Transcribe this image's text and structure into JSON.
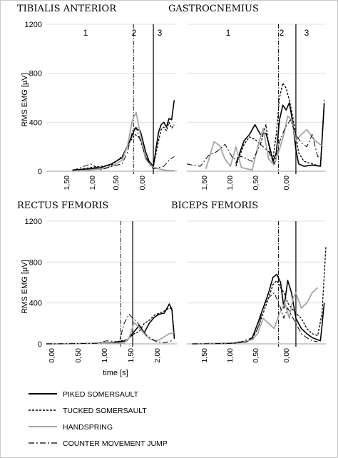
{
  "chart_data": [
    {
      "type": "line",
      "title": "TIBIALIS ANTERIOR",
      "ylabel": "RMS EMG [µV]",
      "xlabel": "",
      "ylim": [
        0,
        1200
      ],
      "yticks": [
        "0",
        "400",
        "800",
        "1200"
      ],
      "xlim": [
        2.05,
        -0.45
      ],
      "xticks": [
        "1,50",
        "1,00",
        "0,50",
        "0,00"
      ],
      "phase_labels": [
        "1",
        "2",
        "3"
      ],
      "phase_lines": [
        {
          "x": 0.38,
          "style": "dashdot"
        },
        {
          "x": 0.0,
          "style": "solid"
        }
      ],
      "series": [
        {
          "name": "PIKED SOMERSAULT",
          "x": [
            1.55,
            1.2,
            1.0,
            0.8,
            0.6,
            0.45,
            0.35,
            0.25,
            0.15,
            0.08,
            0.0,
            -0.05,
            -0.1,
            -0.15,
            -0.2,
            -0.25,
            -0.3,
            -0.35,
            -0.4
          ],
          "values": [
            10,
            20,
            30,
            60,
            110,
            250,
            350,
            330,
            160,
            80,
            40,
            180,
            320,
            380,
            400,
            360,
            430,
            420,
            580
          ]
        },
        {
          "name": "TUCKED SOMERSAULT",
          "x": [
            1.55,
            1.2,
            1.0,
            0.8,
            0.6,
            0.45,
            0.35,
            0.25,
            0.15,
            0.08,
            0.0,
            -0.05,
            -0.1,
            -0.15,
            -0.2,
            -0.25,
            -0.3,
            -0.35,
            -0.4
          ],
          "values": [
            5,
            30,
            40,
            50,
            120,
            240,
            300,
            270,
            120,
            70,
            40,
            140,
            250,
            340,
            360,
            330,
            400,
            350,
            380
          ]
        },
        {
          "name": "HANDSPRING",
          "x": [
            1.55,
            1.2,
            1.0,
            0.8,
            0.6,
            0.5,
            0.4,
            0.33,
            0.25,
            0.15,
            0.05,
            0.0,
            -0.1,
            -0.2,
            -0.3,
            -0.4
          ],
          "values": [
            0,
            10,
            20,
            40,
            90,
            200,
            420,
            480,
            300,
            100,
            50,
            30,
            20,
            10,
            5,
            5
          ]
        },
        {
          "name": "COUNTER MOVEMENT JUMP",
          "x": [
            1.55,
            1.2,
            1.0,
            0.8,
            0.6,
            0.5,
            0.4,
            0.33,
            0.25,
            0.15,
            0.05,
            0.0,
            -0.1,
            -0.2,
            -0.3,
            -0.4
          ],
          "values": [
            5,
            60,
            10,
            40,
            60,
            150,
            330,
            360,
            250,
            120,
            40,
            20,
            30,
            40,
            90,
            120
          ]
        }
      ]
    },
    {
      "type": "line",
      "title": "GASTROCNEMIUS",
      "ylabel": "",
      "xlabel": "",
      "ylim": [
        0,
        1200
      ],
      "xlim": [
        2.0,
        -0.55
      ],
      "xticks": [
        "1,50",
        "1,00",
        "0,50",
        "0,00"
      ],
      "phase_labels": [
        "1",
        "2",
        "3"
      ],
      "phase_lines": [
        {
          "x": 0.32,
          "style": "dashdot"
        },
        {
          "x": 0.0,
          "style": "solid"
        }
      ],
      "series": [
        {
          "name": "PIKED SOMERSAULT",
          "x": [
            1.1,
            0.95,
            0.85,
            0.75,
            0.65,
            0.55,
            0.48,
            0.42,
            0.36,
            0.3,
            0.24,
            0.18,
            0.12,
            0.06,
            0.0,
            -0.05,
            -0.15,
            -0.3,
            -0.45,
            -0.52
          ],
          "values": [
            60,
            250,
            300,
            380,
            300,
            310,
            200,
            80,
            150,
            420,
            540,
            500,
            560,
            400,
            180,
            60,
            40,
            50,
            40,
            550
          ]
        },
        {
          "name": "TUCKED SOMERSAULT",
          "x": [
            1.1,
            0.95,
            0.85,
            0.75,
            0.65,
            0.55,
            0.48,
            0.42,
            0.36,
            0.3,
            0.24,
            0.18,
            0.12,
            0.06,
            0.0,
            -0.05,
            -0.15,
            -0.3,
            -0.45,
            -0.52
          ],
          "values": [
            40,
            220,
            280,
            260,
            220,
            380,
            160,
            100,
            300,
            600,
            720,
            680,
            580,
            450,
            300,
            150,
            80,
            60,
            40,
            580
          ]
        },
        {
          "name": "HANDSPRING",
          "x": [
            1.65,
            1.5,
            1.4,
            1.3,
            1.2,
            1.1,
            1.0,
            0.9,
            0.8,
            0.7,
            0.6,
            0.5,
            0.4,
            0.3,
            0.22,
            0.15,
            0.08,
            0.0,
            -0.1,
            -0.2,
            -0.35,
            -0.5
          ],
          "values": [
            20,
            240,
            210,
            100,
            40,
            200,
            30,
            20,
            10,
            200,
            350,
            100,
            50,
            180,
            300,
            450,
            420,
            250,
            300,
            340,
            250,
            200
          ]
        },
        {
          "name": "COUNTER MOVEMENT JUMP",
          "x": [
            2.0,
            1.9,
            1.75,
            1.6,
            1.45,
            1.3,
            1.15,
            1.0,
            0.8,
            0.65,
            0.5,
            0.4,
            0.3,
            0.2,
            0.1,
            0.0,
            -0.1,
            -0.2,
            -0.3,
            -0.4,
            -0.5
          ],
          "values": [
            60,
            50,
            40,
            130,
            160,
            220,
            100,
            120,
            80,
            220,
            160,
            60,
            240,
            350,
            420,
            300,
            230,
            200,
            300,
            120,
            100
          ]
        }
      ]
    },
    {
      "type": "line",
      "title": "RECTUS FEMORIS",
      "ylabel": "RMS EMG [µV]",
      "xlabel": "time [s]",
      "ylim": [
        0,
        1200
      ],
      "yticks": [
        "0",
        "400",
        "800",
        "1200"
      ],
      "xlim": [
        0.0,
        2.6
      ],
      "xticks": [
        "0,00",
        "0,50",
        "1,00",
        "1,50",
        "2,00"
      ],
      "phase_lines": [
        {
          "x": 1.48,
          "style": "dashdot"
        },
        {
          "x": 1.72,
          "style": "solid"
        }
      ],
      "series": [
        {
          "name": "PIKED SOMERSAULT",
          "x": [
            0.0,
            0.5,
            1.0,
            1.3,
            1.6,
            1.75,
            1.85,
            1.95,
            2.05,
            2.15,
            2.25,
            2.35,
            2.45,
            2.5,
            2.55
          ],
          "values": [
            0,
            2,
            5,
            10,
            30,
            120,
            180,
            110,
            200,
            260,
            290,
            300,
            390,
            340,
            50
          ]
        },
        {
          "name": "TUCKED SOMERSAULT",
          "x": [
            0.0,
            0.5,
            1.0,
            1.3,
            1.6,
            1.75,
            1.85,
            1.95,
            2.05,
            2.15,
            2.25,
            2.35,
            2.45,
            2.5,
            2.55
          ],
          "values": [
            0,
            2,
            5,
            10,
            40,
            100,
            120,
            200,
            230,
            280,
            300,
            320,
            350,
            340,
            80
          ]
        },
        {
          "name": "HANDSPRING",
          "x": [
            0.0,
            0.5,
            1.0,
            1.3,
            1.55,
            1.65,
            1.75,
            1.85,
            1.95,
            2.05,
            2.15,
            2.25,
            2.35,
            2.45,
            2.55
          ],
          "values": [
            0,
            2,
            3,
            5,
            10,
            60,
            210,
            160,
            100,
            50,
            30,
            40,
            70,
            100,
            110
          ]
        },
        {
          "name": "COUNTER MOVEMENT JUMP",
          "x": [
            0.0,
            0.5,
            1.0,
            1.2,
            1.45,
            1.55,
            1.65,
            1.72,
            1.8,
            1.9,
            2.0,
            2.1,
            2.2,
            2.35,
            2.5
          ],
          "values": [
            0,
            2,
            5,
            30,
            20,
            200,
            290,
            250,
            220,
            150,
            80,
            50,
            20,
            10,
            30
          ]
        }
      ]
    },
    {
      "type": "line",
      "title": "BICEPS FEMORIS",
      "ylabel": "",
      "xlabel": "",
      "ylim": [
        0,
        1200
      ],
      "xlim": [
        2.0,
        -0.55
      ],
      "xticks": [
        "1,50",
        "1,00",
        "0,50",
        "0,00"
      ],
      "phase_lines": [
        {
          "x": 0.32,
          "style": "dashdot"
        },
        {
          "x": 0.0,
          "style": "solid"
        }
      ],
      "series": [
        {
          "name": "PIKED SOMERSAULT",
          "x": [
            1.9,
            1.6,
            1.3,
            1.1,
            0.9,
            0.8,
            0.7,
            0.6,
            0.5,
            0.42,
            0.35,
            0.28,
            0.22,
            0.15,
            0.08,
            0.0,
            -0.1,
            -0.2,
            -0.3,
            -0.4,
            -0.45,
            -0.52
          ],
          "values": [
            0,
            2,
            5,
            10,
            20,
            60,
            200,
            350,
            500,
            650,
            680,
            600,
            350,
            620,
            500,
            250,
            150,
            100,
            60,
            40,
            30,
            400
          ]
        },
        {
          "name": "TUCKED SOMERSAULT",
          "x": [
            1.9,
            1.6,
            1.3,
            1.1,
            0.9,
            0.8,
            0.7,
            0.6,
            0.5,
            0.42,
            0.35,
            0.28,
            0.22,
            0.15,
            0.08,
            0.0,
            -0.1,
            -0.2,
            -0.3,
            -0.4,
            -0.48,
            -0.55
          ],
          "values": [
            0,
            2,
            5,
            10,
            30,
            50,
            150,
            300,
            450,
            580,
            620,
            550,
            500,
            400,
            350,
            300,
            250,
            150,
            100,
            80,
            300,
            950
          ]
        },
        {
          "name": "HANDSPRING",
          "x": [
            1.9,
            1.5,
            1.2,
            1.0,
            0.8,
            0.7,
            0.6,
            0.5,
            0.4,
            0.3,
            0.2,
            0.12,
            0.05,
            0.0,
            -0.1,
            -0.2,
            -0.3,
            -0.4
          ],
          "values": [
            0,
            5,
            10,
            20,
            40,
            100,
            250,
            200,
            150,
            300,
            400,
            250,
            450,
            500,
            350,
            400,
            500,
            550
          ]
        },
        {
          "name": "COUNTER MOVEMENT JUMP",
          "x": [
            1.9,
            1.5,
            1.2,
            1.0,
            0.8,
            0.7,
            0.6,
            0.5,
            0.4,
            0.3,
            0.22,
            0.15,
            0.08,
            0.0,
            -0.1,
            -0.2,
            -0.3,
            -0.4
          ],
          "values": [
            0,
            2,
            5,
            20,
            60,
            150,
            350,
            450,
            500,
            380,
            250,
            350,
            280,
            200,
            100,
            60,
            30,
            20
          ]
        }
      ]
    }
  ],
  "legend": [
    {
      "label": "PIKED SOMERSAULT",
      "style": "solid-black"
    },
    {
      "label": "TUCKED SOMERSAULT",
      "style": "dashed-black"
    },
    {
      "label": "HANDSPRING",
      "style": "solid-gray"
    },
    {
      "label": "COUNTER MOVEMENT JUMP",
      "style": "dashdot-black"
    }
  ],
  "colors": {
    "series_black": "#000000",
    "series_gray": "#a6a6a6",
    "grid": "#d9d9d9"
  }
}
